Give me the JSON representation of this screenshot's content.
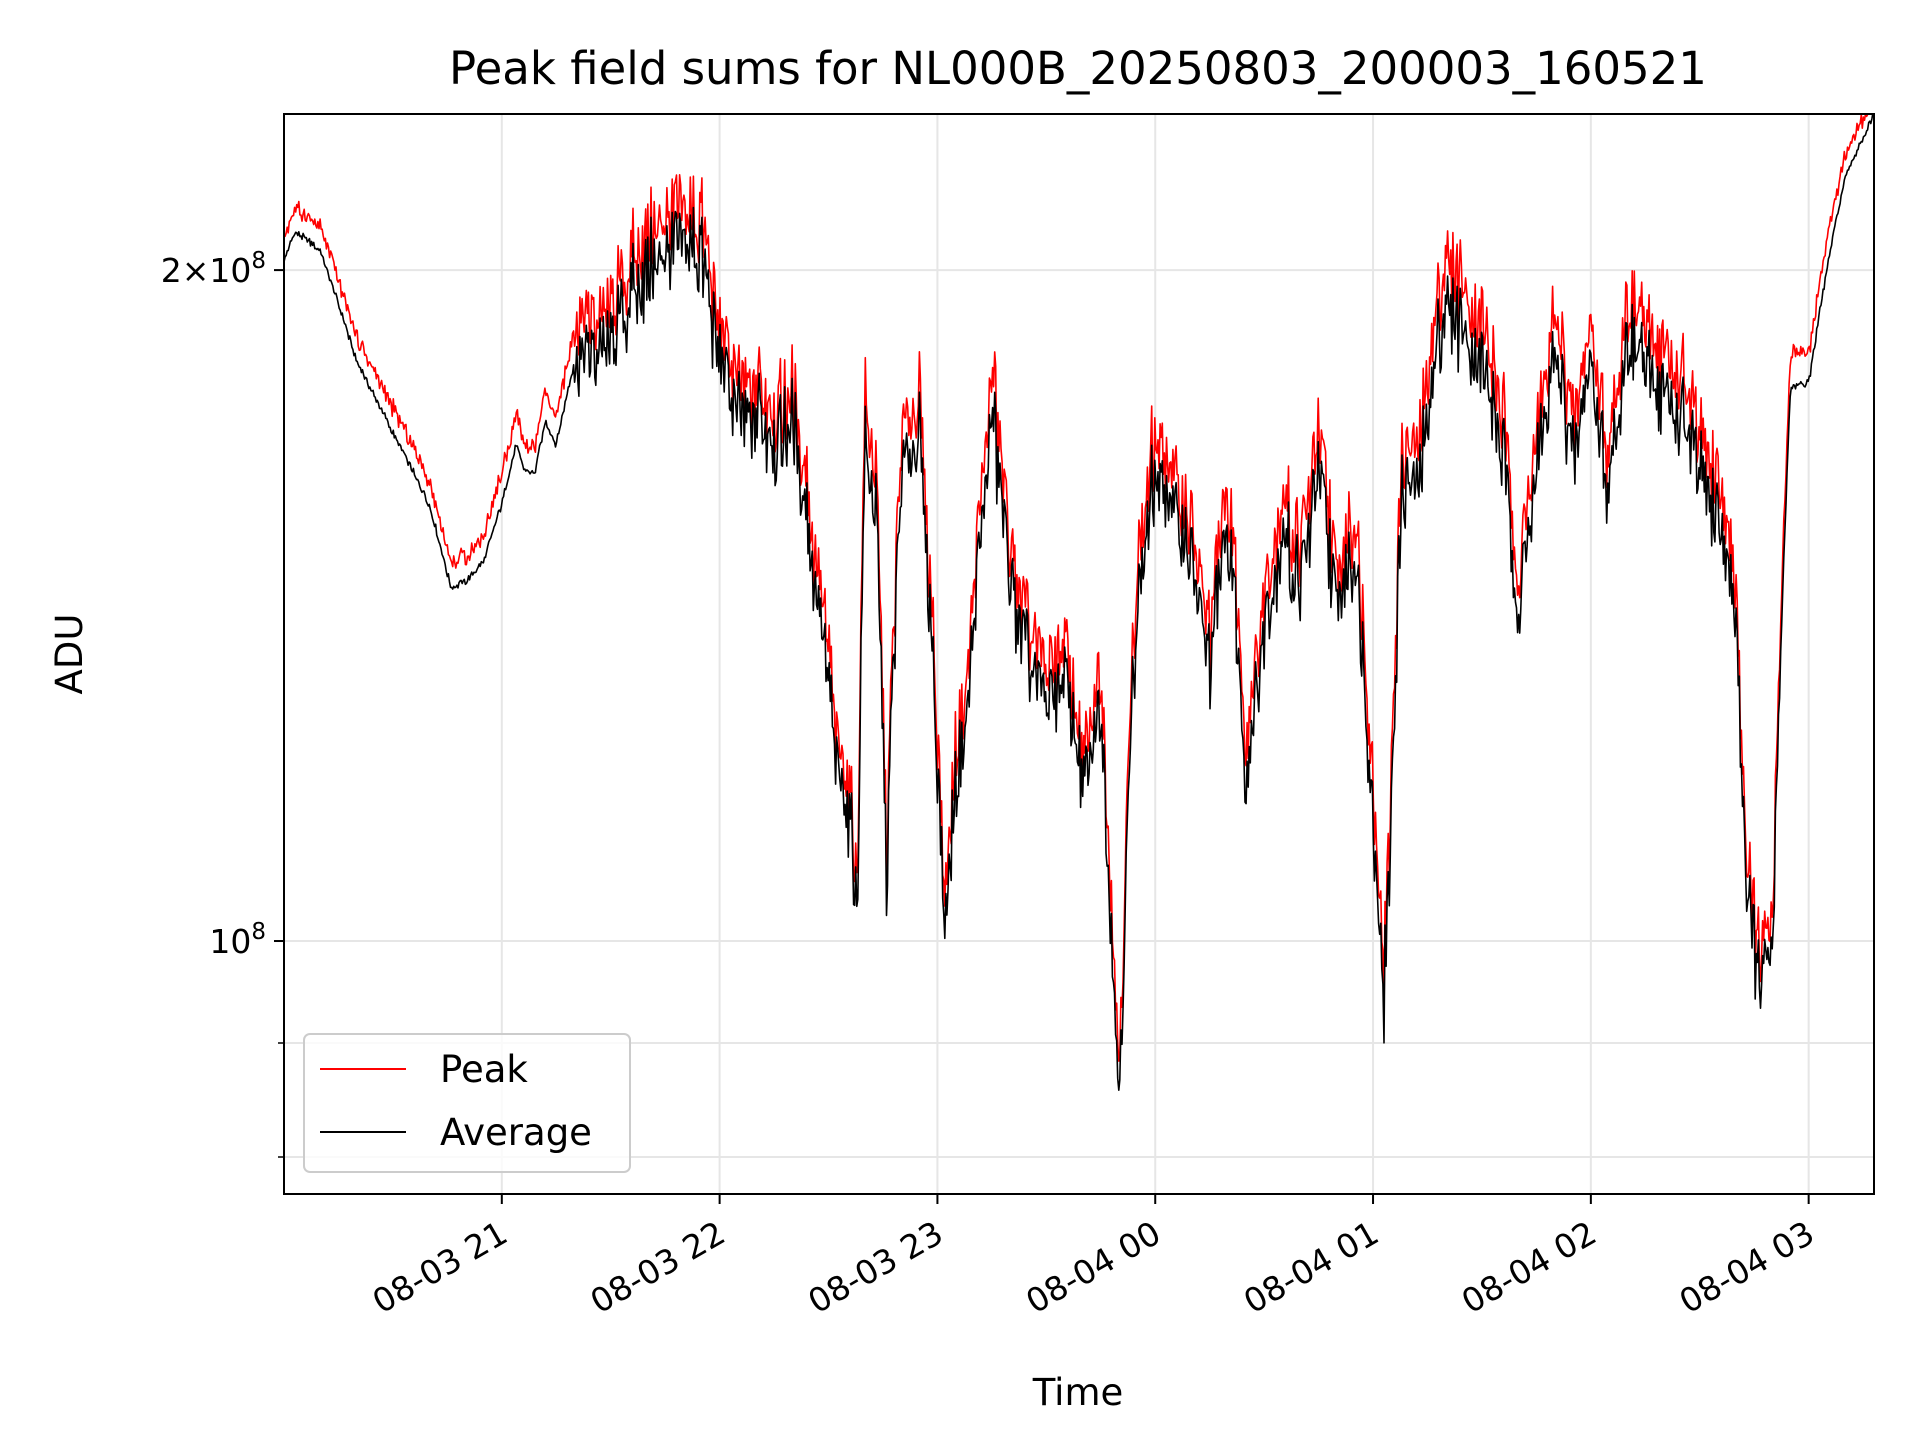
{
  "chart_data": {
    "type": "line",
    "title": "Peak field sums for NL000B_20250803_200003_160521",
    "xlabel": "Time",
    "ylabel": "ADU",
    "y_scale": "log",
    "ylim": [
      77000000,
      235000000
    ],
    "xlim": [
      "2025-08-03 20:00",
      "2025-08-04 03:18"
    ],
    "grid": true,
    "legend_location": "lower-left",
    "x_ticks": [
      "08-03 21",
      "08-03 22",
      "08-03 23",
      "08-04 00",
      "08-04 01",
      "08-04 02",
      "08-04 03"
    ],
    "y_ticks": [
      {
        "label": "10",
        "exponent": "8",
        "value": 100000000
      },
      {
        "label": "2×10",
        "exponent": "8",
        "value": 200000000
      }
    ],
    "x": [
      "2025-08-03 20:00",
      "2025-08-03 20:03",
      "2025-08-03 20:05",
      "2025-08-03 20:10",
      "2025-08-03 20:20",
      "2025-08-03 20:30",
      "2025-08-03 20:40",
      "2025-08-03 20:46",
      "2025-08-03 20:50",
      "2025-08-03 20:55",
      "2025-08-03 21:00",
      "2025-08-03 21:04",
      "2025-08-03 21:06",
      "2025-08-03 21:09",
      "2025-08-03 21:12",
      "2025-08-03 21:15",
      "2025-08-03 21:20",
      "2025-08-03 21:30",
      "2025-08-03 21:35",
      "2025-08-03 21:40",
      "2025-08-03 21:45",
      "2025-08-03 21:50",
      "2025-08-03 21:55",
      "2025-08-03 21:58",
      "2025-08-03 22:05",
      "2025-08-03 22:10",
      "2025-08-03 22:15",
      "2025-08-03 22:20",
      "2025-08-03 22:25",
      "2025-08-03 22:30",
      "2025-08-03 22:32",
      "2025-08-03 22:36",
      "2025-08-03 22:38",
      "2025-08-03 22:40",
      "2025-08-03 22:43",
      "2025-08-03 22:46",
      "2025-08-03 22:50",
      "2025-08-03 22:55",
      "2025-08-03 23:02",
      "2025-08-03 23:05",
      "2025-08-03 23:08",
      "2025-08-03 23:12",
      "2025-08-03 23:15",
      "2025-08-03 23:20",
      "2025-08-03 23:25",
      "2025-08-03 23:30",
      "2025-08-03 23:35",
      "2025-08-03 23:40",
      "2025-08-03 23:45",
      "2025-08-03 23:50",
      "2025-08-03 23:55",
      "2025-08-04 00:00",
      "2025-08-04 00:10",
      "2025-08-04 00:15",
      "2025-08-04 00:20",
      "2025-08-04 00:25",
      "2025-08-04 00:30",
      "2025-08-04 00:35",
      "2025-08-04 00:40",
      "2025-08-04 00:45",
      "2025-08-04 00:50",
      "2025-08-04 00:55",
      "2025-08-04 01:03",
      "2025-08-04 01:05",
      "2025-08-04 01:08",
      "2025-08-04 01:12",
      "2025-08-04 01:20",
      "2025-08-04 01:30",
      "2025-08-04 01:36",
      "2025-08-04 01:40",
      "2025-08-04 01:50",
      "2025-08-04 01:55",
      "2025-08-04 02:00",
      "2025-08-04 02:05",
      "2025-08-04 02:10",
      "2025-08-04 02:20",
      "2025-08-04 02:25",
      "2025-08-04 02:30",
      "2025-08-04 02:35",
      "2025-08-04 02:40",
      "2025-08-04 02:43",
      "2025-08-04 02:47",
      "2025-08-04 02:50",
      "2025-08-04 02:55",
      "2025-08-04 03:00",
      "2025-08-04 03:05",
      "2025-08-04 03:10",
      "2025-08-04 03:18"
    ],
    "series": [
      {
        "name": "Peak",
        "color": "#ff0000",
        "values": [
          203,
          209,
          208,
          205,
          183,
          170,
          158,
          145,
          146,
          149,
          159,
          169,
          164,
          163,
          173,
          168,
          185,
          188,
          197,
          203,
          206,
          209,
          206,
          193,
          173,
          175,
          169,
          174,
          152,
          132,
          120,
          115,
          104,
          170,
          160,
          108,
          164,
          172,
          102,
          120,
          128,
          155,
          176,
          148,
          135,
          130,
          133,
          118,
          128,
          85,
          145,
          166,
          150,
          135,
          158,
          120,
          140,
          155,
          148,
          165,
          144,
          152,
          95,
          115,
          165,
          160,
          200,
          185,
          170,
          142,
          188,
          168,
          185,
          162,
          190,
          180,
          175,
          165,
          158,
          140,
          105,
          96,
          100,
          180,
          180,
          202,
          221,
          235
        ]
      },
      {
        "name": "Average",
        "color": "#000000",
        "values": [
          202,
          208,
          207,
          204,
          182,
          169,
          157,
          144,
          145,
          148,
          157,
          167,
          163,
          162,
          171,
          167,
          182,
          185,
          194,
          200,
          203,
          206,
          203,
          190,
          171,
          173,
          167,
          172,
          150,
          130,
          119,
          114,
          103,
          166,
          157,
          107,
          161,
          169,
          101,
          118,
          126,
          152,
          172,
          146,
          133,
          128,
          131,
          117,
          126,
          84,
          142,
          163,
          148,
          133,
          155,
          118,
          138,
          152,
          145,
          162,
          142,
          149,
          94,
          113,
          162,
          157,
          195,
          181,
          166,
          140,
          184,
          165,
          181,
          159,
          186,
          176,
          171,
          162,
          155,
          138,
          104,
          95,
          99,
          177,
          178,
          200,
          220,
          235
        ]
      }
    ]
  }
}
